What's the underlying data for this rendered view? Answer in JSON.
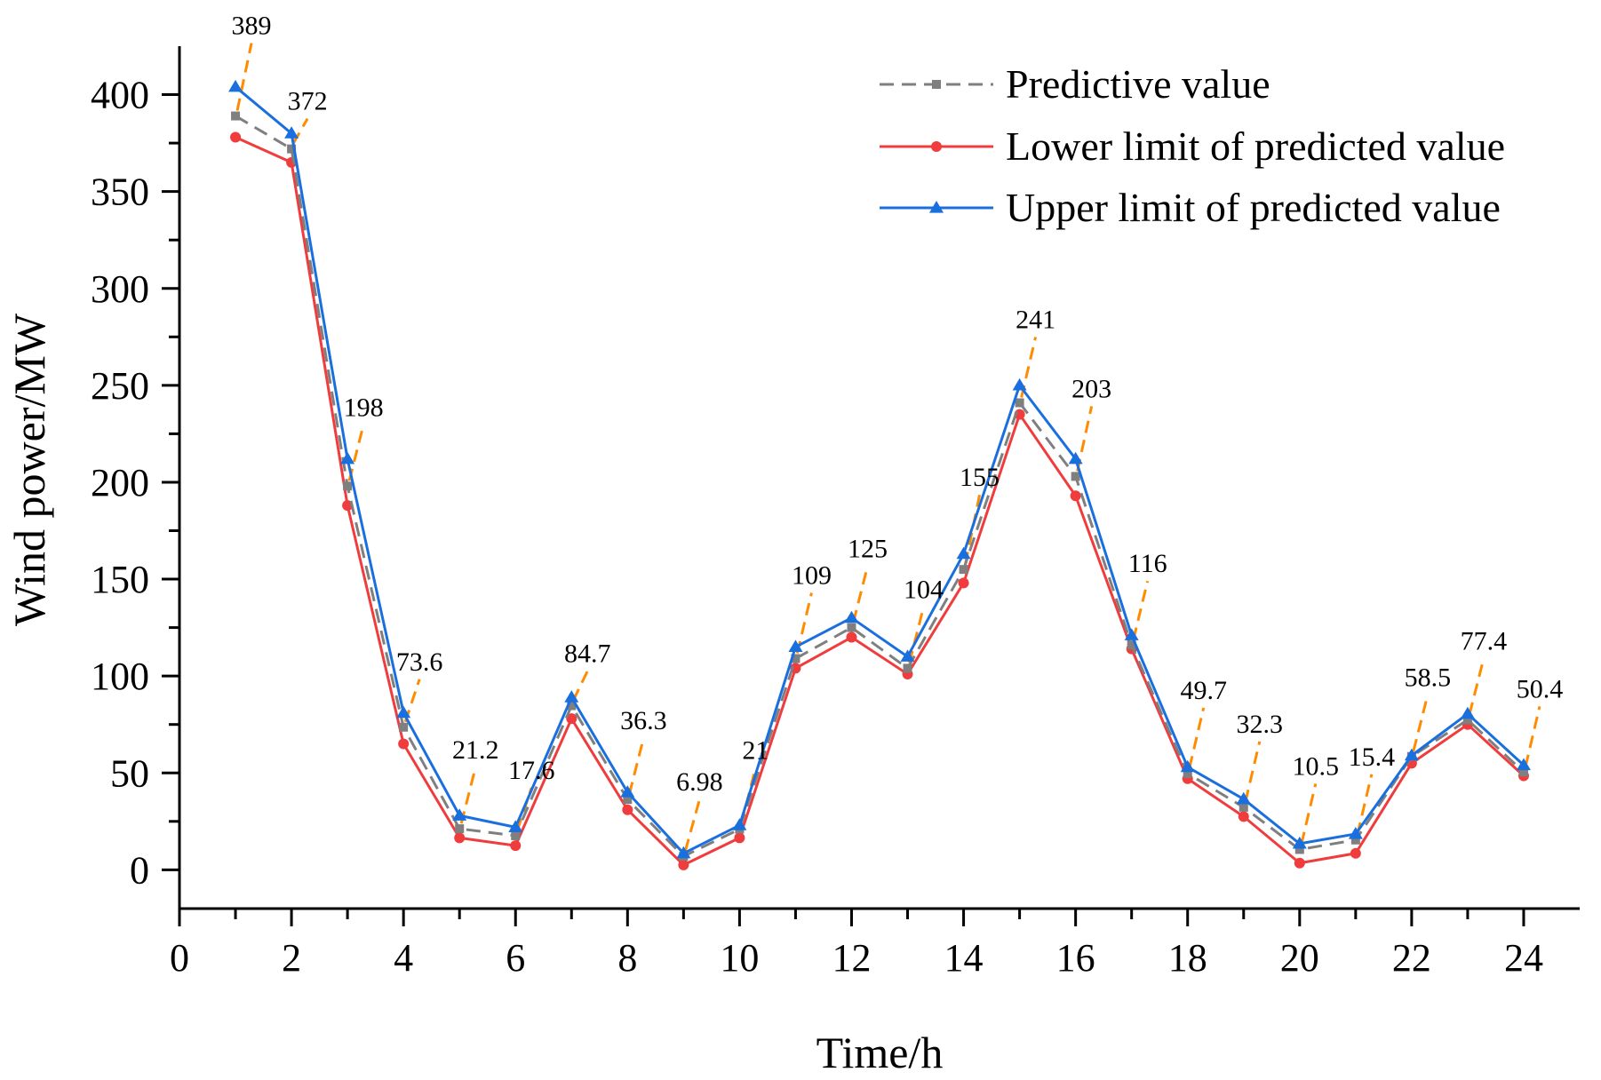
{
  "chart_data": {
    "type": "line",
    "title": "",
    "xlabel": "Time/h",
    "ylabel": "Wind power/MW",
    "xlim": [
      0,
      25
    ],
    "ylim": [
      -20,
      425
    ],
    "xticks": [
      0,
      2,
      4,
      6,
      8,
      10,
      12,
      14,
      16,
      18,
      20,
      22,
      24
    ],
    "yticks": [
      0,
      50,
      100,
      150,
      200,
      250,
      300,
      350,
      400
    ],
    "x": [
      1,
      2,
      3,
      4,
      5,
      6,
      7,
      8,
      9,
      10,
      11,
      12,
      13,
      14,
      15,
      16,
      17,
      18,
      19,
      20,
      21,
      22,
      23,
      24
    ],
    "series": [
      {
        "name": "Predictive value",
        "color": "#7f7f7f",
        "style": "dashed",
        "marker": "square",
        "values": [
          389,
          372,
          198,
          73.6,
          21.2,
          17.6,
          84.7,
          36.3,
          6.98,
          21,
          109,
          125,
          104,
          155,
          241,
          203,
          116,
          49.7,
          32.3,
          10.5,
          15.4,
          58.5,
          77.4,
          50.4
        ]
      },
      {
        "name": "Lower limit of predicted value",
        "color": "#f03c3c",
        "style": "solid",
        "marker": "circle",
        "values": [
          378,
          365,
          188,
          65,
          16.5,
          12.5,
          78,
          31,
          2.5,
          16.5,
          104,
          120,
          101,
          148,
          235,
          193,
          114,
          47,
          27.5,
          3.5,
          8.5,
          55,
          75,
          48.5
        ]
      },
      {
        "name": "Upper limit of predicted value",
        "color": "#1a6fdf",
        "style": "solid",
        "marker": "triangle",
        "values": [
          404,
          380,
          212,
          81,
          28,
          22,
          89,
          40,
          8.5,
          23,
          115,
          130,
          110,
          163,
          250,
          212,
          121,
          53,
          36.5,
          13.5,
          18.5,
          59,
          80.5,
          54
        ]
      }
    ],
    "data_labels": {
      "series": "Predictive value",
      "text": [
        "389",
        "372",
        "198",
        "73.6",
        "21.2",
        "17.6",
        "84.7",
        "36.3",
        "6.98",
        "21",
        "109",
        "125",
        "104",
        "155",
        "241",
        "203",
        "116",
        "49.7",
        "32.3",
        "10.5",
        "15.4",
        "58.5",
        "77.4",
        "50.4"
      ],
      "leader_color": "#ff8c00"
    },
    "legend_position": "top-right",
    "grid": false
  }
}
